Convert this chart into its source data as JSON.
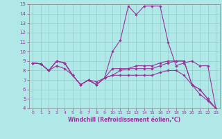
{
  "xlabel": "Windchill (Refroidissement éolien,°C)",
  "background_color": "#b0e8e8",
  "line_color": "#993399",
  "grid_color": "#90cccc",
  "xlim": [
    -0.5,
    23.5
  ],
  "ylim": [
    4,
    15
  ],
  "xticks": [
    0,
    1,
    2,
    3,
    4,
    5,
    6,
    7,
    8,
    9,
    10,
    11,
    12,
    13,
    14,
    15,
    16,
    17,
    18,
    19,
    20,
    21,
    22,
    23
  ],
  "yticks": [
    4,
    5,
    6,
    7,
    8,
    9,
    10,
    11,
    12,
    13,
    14,
    15
  ],
  "series": [
    [
      8.8,
      8.7,
      8.0,
      9.0,
      8.8,
      7.5,
      6.5,
      7.0,
      6.5,
      7.2,
      7.5,
      8.0,
      8.2,
      8.5,
      8.5,
      8.5,
      8.8,
      9.0,
      9.0,
      9.0,
      6.5,
      6.0,
      5.0,
      4.0
    ],
    [
      8.8,
      8.7,
      8.0,
      9.0,
      8.8,
      7.5,
      6.5,
      7.0,
      6.5,
      7.2,
      10.0,
      11.2,
      14.8,
      13.9,
      14.8,
      14.8,
      14.8,
      11.0,
      8.5,
      8.8,
      9.0,
      8.5,
      8.5,
      4.0
    ],
    [
      8.8,
      8.7,
      8.0,
      9.0,
      8.8,
      7.5,
      6.5,
      7.0,
      6.5,
      7.2,
      8.2,
      8.2,
      8.2,
      8.2,
      8.2,
      8.2,
      8.5,
      8.8,
      9.0,
      9.0,
      6.5,
      6.0,
      5.0,
      4.0
    ],
    [
      8.8,
      8.7,
      8.0,
      8.5,
      8.2,
      7.5,
      6.5,
      7.0,
      6.8,
      7.2,
      7.5,
      7.5,
      7.5,
      7.5,
      7.5,
      7.5,
      7.8,
      8.0,
      8.0,
      7.5,
      6.5,
      5.5,
      4.8,
      4.0
    ]
  ]
}
